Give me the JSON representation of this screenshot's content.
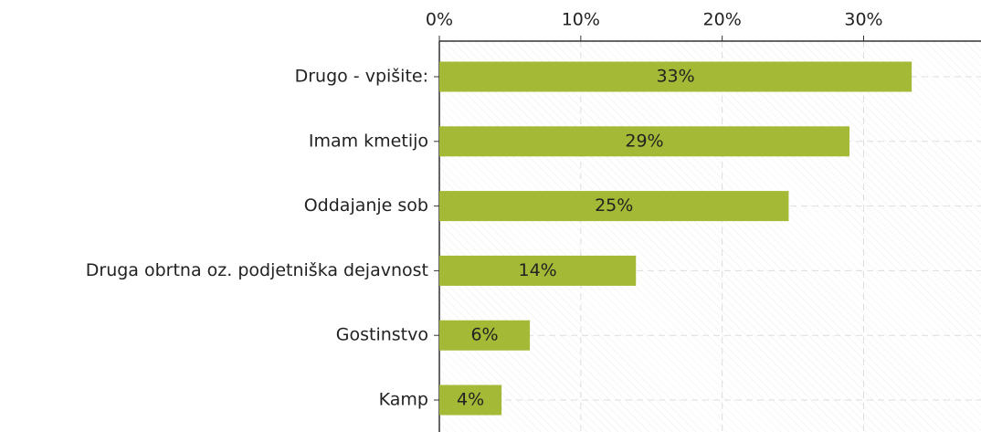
{
  "chart_data": {
    "type": "bar",
    "orientation": "horizontal",
    "categories": [
      "Drugo - vpišite:",
      "Imam kmetijo",
      "Oddajanje sob",
      "Druga obrtna oz. podjetniška dejavnost",
      "Gostinstvo",
      "Kamp"
    ],
    "values": [
      33.4,
      29,
      24.7,
      13.9,
      6.4,
      4.4
    ],
    "value_labels": [
      "33%",
      "29%",
      "25%",
      "14%",
      "6%",
      "4%"
    ],
    "color": "#a4b935",
    "xlim": [
      0,
      38.3
    ],
    "xticks": [
      {
        "value": 0,
        "label": "0%"
      },
      {
        "value": 10,
        "label": "10%"
      },
      {
        "value": 20,
        "label": "20%"
      },
      {
        "value": 30,
        "label": "30%"
      }
    ],
    "grid": true
  }
}
